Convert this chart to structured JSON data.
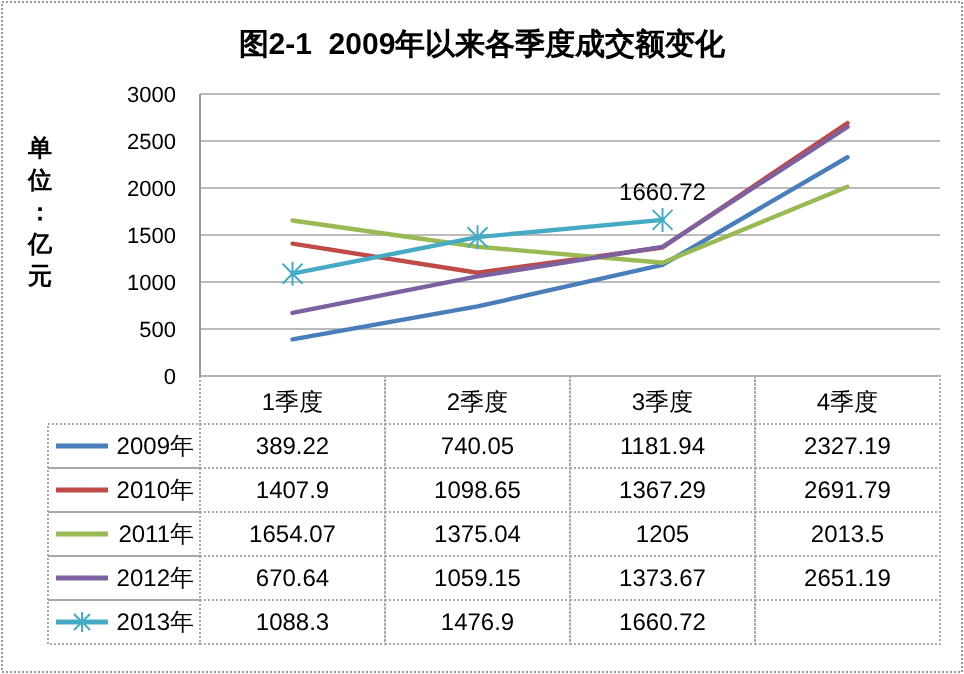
{
  "chart_data": {
    "type": "line",
    "title": "图2-1  2009年以来各季度成交额变化",
    "ylabel": "单位：亿元",
    "categories": [
      "1季度",
      "2季度",
      "3季度",
      "4季度"
    ],
    "ylim": [
      0,
      3000
    ],
    "yticks": [
      0,
      500,
      1000,
      1500,
      2000,
      2500,
      3000
    ],
    "grid": "y",
    "legend": "bottom",
    "data_labels": true,
    "annotations": [
      {
        "text": "1660.72",
        "x": "3季度",
        "y": 1660.72
      }
    ],
    "series": [
      {
        "name": "2009年",
        "color": "#4a7ebb",
        "values": [
          389.22,
          740.05,
          1181.94,
          2327.19
        ]
      },
      {
        "name": "2010年",
        "color": "#be4b48",
        "values": [
          1407.9,
          1098.65,
          1367.29,
          2691.79
        ]
      },
      {
        "name": "2011年",
        "color": "#98b954",
        "values": [
          1654.07,
          1375.04,
          1205,
          2013.5
        ]
      },
      {
        "name": "2012年",
        "color": "#7d60a0",
        "values": [
          670.64,
          1059.15,
          1373.67,
          2651.19
        ]
      },
      {
        "name": "2013年",
        "color": "#46aac5",
        "marker": "cross",
        "values": [
          1088.3,
          1476.9,
          1660.72,
          null
        ]
      }
    ]
  }
}
